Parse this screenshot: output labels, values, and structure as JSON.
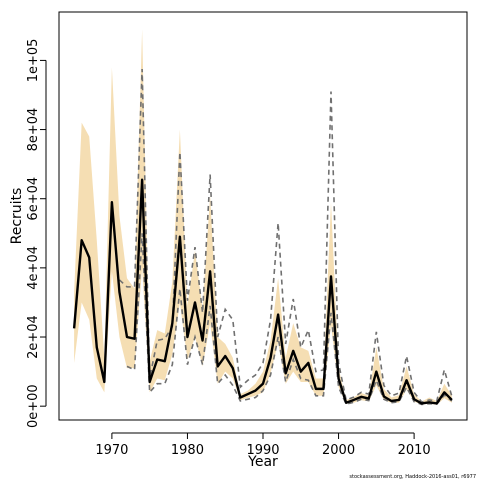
{
  "chart_data": {
    "type": "line",
    "xlabel": "Year",
    "ylabel": "Recruits",
    "footnote": "stockassessment.org, Haddock-2016-ass01, r6977",
    "xlim": [
      1963,
      2017
    ],
    "ylim": [
      -4000,
      114000
    ],
    "x_ticks": [
      1970,
      1980,
      1990,
      2000,
      2010
    ],
    "x_tick_labels": [
      "1970",
      "1980",
      "1990",
      "2000",
      "2010"
    ],
    "y_ticks": [
      0,
      20000,
      40000,
      60000,
      80000,
      100000
    ],
    "y_tick_labels": [
      "0e+00",
      "2e+04",
      "4e+04",
      "6e+04",
      "8e+04",
      "1e+05"
    ],
    "colors": {
      "band": "#f5deb3",
      "estimate": "#000000",
      "dashed": "#707070",
      "frame": "#000000"
    },
    "years": [
      1965,
      1966,
      1967,
      1968,
      1969,
      1970,
      1971,
      1972,
      1973,
      1974,
      1975,
      1976,
      1977,
      1978,
      1979,
      1980,
      1981,
      1982,
      1983,
      1984,
      1985,
      1986,
      1987,
      1988,
      1989,
      1990,
      1991,
      1992,
      1993,
      1994,
      1995,
      1996,
      1997,
      1998,
      1999,
      2000,
      2001,
      2002,
      2003,
      2004,
      2005,
      2006,
      2007,
      2008,
      2009,
      2010,
      2011,
      2012,
      2013,
      2014,
      2015
    ],
    "series": [
      {
        "role": "estimate",
        "values": [
          22500,
          48000,
          43000,
          17000,
          7000,
          59000,
          33000,
          20000,
          19500,
          65500,
          7000,
          13500,
          13000,
          24000,
          49000,
          20000,
          30000,
          19000,
          39000,
          11500,
          14500,
          11000,
          2500,
          3500,
          4500,
          6500,
          14000,
          26500,
          9500,
          16000,
          10000,
          12500,
          5000,
          5000,
          37500,
          8000,
          1000,
          1800,
          2700,
          2200,
          10000,
          2800,
          1500,
          1800,
          7500,
          2000,
          800,
          1100,
          800,
          4000,
          1800
        ]
      },
      {
        "role": "upper_band",
        "values": [
          33000,
          82000,
          78000,
          48000,
          14000,
          98000,
          55000,
          37000,
          34000,
          109000,
          13000,
          22000,
          21000,
          36000,
          80000,
          29000,
          45000,
          28000,
          61000,
          20000,
          18000,
          14000,
          3500,
          4500,
          6500,
          10000,
          19000,
          37000,
          14000,
          24000,
          17000,
          16000,
          8000,
          8000,
          59000,
          11000,
          1800,
          2600,
          3800,
          3000,
          17000,
          5000,
          2500,
          3200,
          11500,
          3500,
          1300,
          2500,
          1500,
          6500,
          3000
        ]
      },
      {
        "role": "lower_band",
        "values": [
          12500,
          30000,
          25000,
          8000,
          4000,
          39000,
          20000,
          11000,
          11000,
          40000,
          4000,
          8000,
          7500,
          15000,
          30000,
          13500,
          20000,
          11500,
          24000,
          6500,
          10000,
          8000,
          1700,
          2400,
          3000,
          4000,
          9500,
          18500,
          6500,
          10000,
          7000,
          7000,
          3000,
          3000,
          23500,
          5500,
          700,
          1000,
          1700,
          1400,
          6000,
          1800,
          1000,
          1000,
          4800,
          1300,
          500,
          700,
          400,
          2300,
          1000
        ]
      },
      {
        "role": "dashed_upper",
        "values": [
          null,
          null,
          null,
          null,
          null,
          null,
          36500,
          34500,
          34500,
          97500,
          8000,
          19000,
          19500,
          23000,
          73500,
          30500,
          46000,
          27000,
          67000,
          20000,
          28000,
          25000,
          5500,
          7500,
          9000,
          12500,
          25000,
          53000,
          18000,
          31000,
          17000,
          22000,
          10000,
          10500,
          91000,
          12500,
          1800,
          2600,
          4000,
          3500,
          21500,
          6000,
          3000,
          3800,
          14500,
          4000,
          1200,
          1800,
          1500,
          10500,
          2800
        ]
      },
      {
        "role": "dashed_lower",
        "values": [
          null,
          null,
          null,
          null,
          null,
          null,
          null,
          11500,
          10500,
          50000,
          4000,
          6500,
          6500,
          12000,
          34000,
          12000,
          20000,
          12000,
          29000,
          6500,
          9000,
          6000,
          1500,
          2000,
          2500,
          4500,
          9000,
          20000,
          7000,
          13500,
          8000,
          7500,
          3000,
          3000,
          27000,
          5500,
          600,
          1100,
          2000,
          1600,
          7500,
          2000,
          1000,
          1300,
          5500,
          1300,
          500,
          700,
          600,
          3200,
          1500
        ]
      }
    ]
  }
}
